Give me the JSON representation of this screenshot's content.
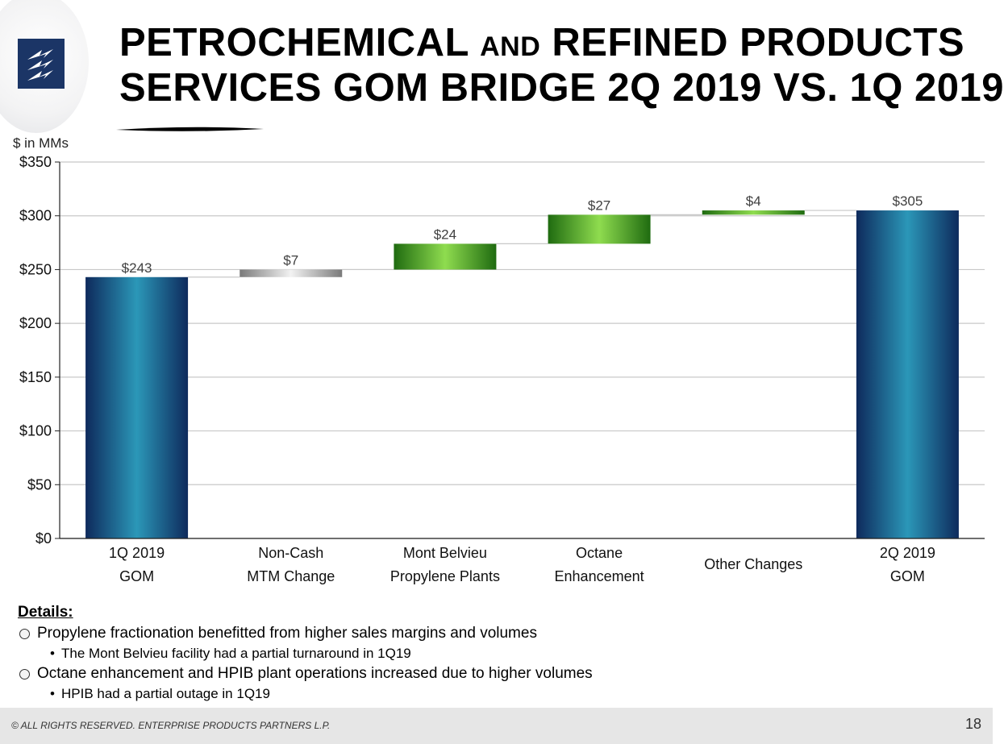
{
  "slide": {
    "title_line1_a": "PETROCHEMICAL ",
    "title_line1_b": "AND",
    "title_line1_c": " REFINED PRODUCTS",
    "title_line2": "SERVICES GOM BRIDGE 2Q 2019 VS. 1Q 2019",
    "units": "$ in MMs"
  },
  "chart_data": {
    "type": "bar",
    "subtype": "waterfall",
    "categories": [
      [
        "1Q 2019",
        "GOM"
      ],
      [
        "Non-Cash",
        "MTM Change"
      ],
      [
        "Mont Belvieu",
        "Propylene Plants"
      ],
      [
        "Octane",
        "Enhancement"
      ],
      [
        "Other Changes"
      ],
      [
        "2Q 2019",
        "GOM"
      ]
    ],
    "values": [
      243,
      7,
      24,
      27,
      4,
      305
    ],
    "bar_kind": [
      "total",
      "increase",
      "increase",
      "increase",
      "increase",
      "total"
    ],
    "data_labels": [
      "$243",
      "$7",
      "$24",
      "$27",
      "$4",
      "$305"
    ],
    "ylim": [
      0,
      350
    ],
    "yticks": [
      0,
      50,
      100,
      150,
      200,
      250,
      300,
      350
    ],
    "ytick_labels": [
      "$0",
      "$50",
      "$100",
      "$150",
      "$200",
      "$250",
      "$300",
      "$350"
    ],
    "ylabel": "$ in MMs",
    "grid": true,
    "colors": {
      "total_dark": "#0e2a5c",
      "total_light": "#2b97b8",
      "green_dark": "#1f6b10",
      "green_light": "#8fdc4f",
      "gray_dark": "#7a7a7a",
      "gray_light": "#f2f2f2"
    }
  },
  "details": {
    "heading": "Details:",
    "items": [
      {
        "text": "Propylene fractionation benefitted from higher sales margins and volumes",
        "sub": "The Mont Belvieu facility had a partial turnaround in 1Q19"
      },
      {
        "text": "Octane enhancement and HPIB plant operations increased due to higher volumes",
        "sub": "HPIB had a partial outage in 1Q19"
      }
    ],
    "bullet_char": "•"
  },
  "footer": {
    "copyright": "© ALL RIGHTS RESERVED. ENTERPRISE PRODUCTS PARTNERS L.P.",
    "page_number": "18"
  },
  "icons": {
    "logo": "enterprise-lightning-logo-icon"
  }
}
